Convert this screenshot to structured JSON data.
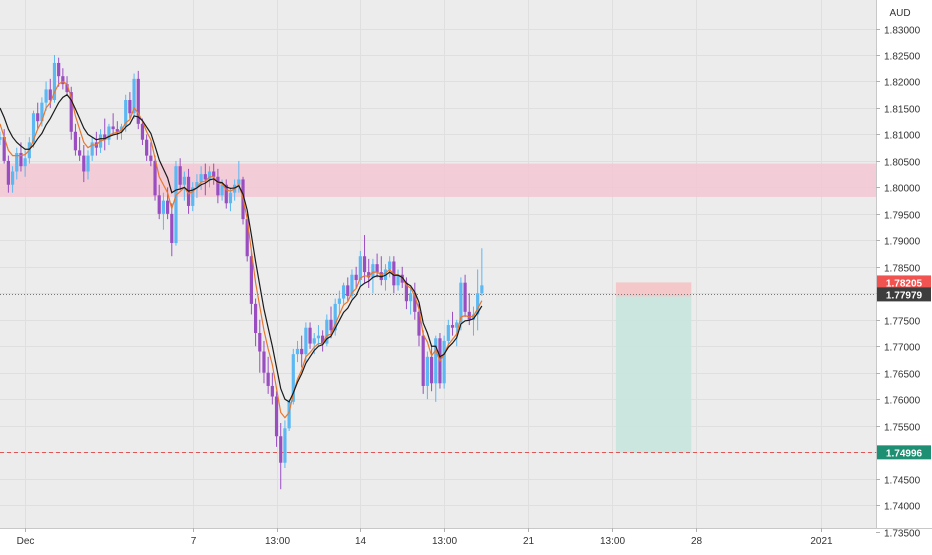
{
  "chart_data": {
    "type": "candlestick",
    "currency_label": "AUD",
    "y_ticks": [
      "1.83000",
      "1.82500",
      "1.82000",
      "1.81500",
      "1.81000",
      "1.80500",
      "1.80000",
      "1.79500",
      "1.79000",
      "1.78500",
      "1.78000",
      "1.77500",
      "1.77000",
      "1.76500",
      "1.76000",
      "1.75500",
      "1.75000",
      "1.74500",
      "1.74000",
      "1.73500"
    ],
    "ylim": [
      1.7335,
      1.8335
    ],
    "x_ticks": [
      {
        "label": "Dec",
        "bar": 6
      },
      {
        "label": "7",
        "bar": 46
      },
      {
        "label": "13:00",
        "bar": 66
      },
      {
        "label": "14",
        "bar": 86
      },
      {
        "label": "13:00",
        "bar": 106
      },
      {
        "label": "21",
        "bar": 126
      },
      {
        "label": "13:00",
        "bar": 146
      },
      {
        "label": "28",
        "bar": 166
      },
      {
        "label": "2021",
        "bar": 196
      }
    ],
    "price_labels": {
      "stop": "1.78205",
      "current": "1.77979",
      "target": "1.74996"
    },
    "levels": {
      "current": 1.77979,
      "stop": 1.78205,
      "target": 1.74996,
      "resistance_zone": [
        1.7982,
        1.8045
      ]
    },
    "position": {
      "start_bar": 147,
      "end_bar": 165,
      "entry": 1.7794,
      "stop": 1.78205,
      "target": 1.74996
    },
    "series": [
      {
        "kind": "ohlc",
        "values": [
          [
            1.809,
            1.8105,
            1.808,
            1.8095
          ],
          [
            1.8095,
            1.811,
            1.8045,
            1.805
          ],
          [
            1.805,
            1.806,
            1.799,
            1.8005
          ],
          [
            1.8005,
            1.804,
            1.799,
            1.803
          ],
          [
            1.803,
            1.8075,
            1.8015,
            1.8065
          ],
          [
            1.8065,
            1.8085,
            1.803,
            1.804
          ],
          [
            1.804,
            1.807,
            1.802,
            1.8055
          ],
          [
            1.8055,
            1.8095,
            1.8045,
            1.8085
          ],
          [
            1.8085,
            1.8145,
            1.8075,
            1.814
          ],
          [
            1.814,
            1.816,
            1.811,
            1.8125
          ],
          [
            1.8125,
            1.817,
            1.8115,
            1.816
          ],
          [
            1.816,
            1.82,
            1.8145,
            1.8185
          ],
          [
            1.8185,
            1.8205,
            1.815,
            1.8165
          ],
          [
            1.8165,
            1.825,
            1.816,
            1.8235
          ],
          [
            1.8235,
            1.8245,
            1.819,
            1.821
          ],
          [
            1.821,
            1.8225,
            1.8185,
            1.8195
          ],
          [
            1.8195,
            1.821,
            1.8175,
            1.818
          ],
          [
            1.818,
            1.819,
            1.809,
            1.8105
          ],
          [
            1.8105,
            1.812,
            1.806,
            1.807
          ],
          [
            1.807,
            1.8095,
            1.805,
            1.806
          ],
          [
            1.806,
            1.808,
            1.801,
            1.803
          ],
          [
            1.803,
            1.807,
            1.8015,
            1.806
          ],
          [
            1.806,
            1.8095,
            1.805,
            1.8085
          ],
          [
            1.8085,
            1.8105,
            1.806,
            1.8075
          ],
          [
            1.8075,
            1.811,
            1.8065,
            1.81
          ],
          [
            1.81,
            1.813,
            1.807,
            1.809
          ],
          [
            1.809,
            1.812,
            1.808,
            1.8115
          ],
          [
            1.8115,
            1.814,
            1.81,
            1.811
          ],
          [
            1.811,
            1.8125,
            1.809,
            1.8105
          ],
          [
            1.8105,
            1.812,
            1.809,
            1.8115
          ],
          [
            1.8115,
            1.8175,
            1.8105,
            1.8165
          ],
          [
            1.8165,
            1.818,
            1.813,
            1.814
          ],
          [
            1.814,
            1.8215,
            1.813,
            1.8205
          ],
          [
            1.8205,
            1.822,
            1.811,
            1.812
          ],
          [
            1.812,
            1.813,
            1.808,
            1.809
          ],
          [
            1.809,
            1.81,
            1.805,
            1.806
          ],
          [
            1.806,
            1.8085,
            1.804,
            1.805
          ],
          [
            1.805,
            1.806,
            1.7975,
            1.7985
          ],
          [
            1.7985,
            1.8005,
            1.794,
            1.795
          ],
          [
            1.795,
            1.799,
            1.792,
            1.7975
          ],
          [
            1.7975,
            1.8,
            1.794,
            1.795
          ],
          [
            1.795,
            1.797,
            1.787,
            1.7895
          ],
          [
            1.7895,
            1.805,
            1.789,
            1.804
          ],
          [
            1.804,
            1.8055,
            1.7995,
            1.8005
          ],
          [
            1.8005,
            1.803,
            1.7975,
            1.802
          ],
          [
            1.802,
            1.8035,
            1.795,
            1.7965
          ],
          [
            1.7965,
            1.801,
            1.7955,
            1.8
          ],
          [
            1.8,
            1.8025,
            1.798,
            1.801
          ],
          [
            1.801,
            1.804,
            1.7995,
            1.8025
          ],
          [
            1.8025,
            1.8045,
            1.7985,
            1.8015
          ],
          [
            1.8015,
            1.804,
            1.8,
            1.803
          ],
          [
            1.803,
            1.8045,
            1.8005,
            1.802
          ],
          [
            1.802,
            1.8035,
            1.797,
            1.7985
          ],
          [
            1.7985,
            1.8015,
            1.7975,
            1.8005
          ],
          [
            1.8005,
            1.8015,
            1.796,
            1.797
          ],
          [
            1.797,
            1.8,
            1.7955,
            1.799
          ],
          [
            1.799,
            1.8015,
            1.7975,
            1.8005
          ],
          [
            1.8005,
            1.805,
            1.799,
            1.8015
          ],
          [
            1.8015,
            1.802,
            1.793,
            1.794
          ],
          [
            1.794,
            1.795,
            1.786,
            1.787
          ],
          [
            1.787,
            1.788,
            1.776,
            1.778
          ],
          [
            1.778,
            1.779,
            1.77,
            1.7725
          ],
          [
            1.7725,
            1.775,
            1.765,
            1.769
          ],
          [
            1.769,
            1.771,
            1.763,
            1.765
          ],
          [
            1.765,
            1.768,
            1.761,
            1.7625
          ],
          [
            1.7625,
            1.765,
            1.759,
            1.7605
          ],
          [
            1.7605,
            1.7615,
            1.751,
            1.753
          ],
          [
            1.753,
            1.7555,
            1.743,
            1.748
          ],
          [
            1.748,
            1.756,
            1.747,
            1.7545
          ],
          [
            1.7545,
            1.76,
            1.754,
            1.7595
          ],
          [
            1.7595,
            1.7695,
            1.759,
            1.7685
          ],
          [
            1.7685,
            1.771,
            1.767,
            1.7695
          ],
          [
            1.7695,
            1.772,
            1.766,
            1.7685
          ],
          [
            1.7685,
            1.7745,
            1.767,
            1.7735
          ],
          [
            1.7735,
            1.7745,
            1.7695,
            1.7705
          ],
          [
            1.7705,
            1.7725,
            1.7685,
            1.7715
          ],
          [
            1.7715,
            1.774,
            1.77,
            1.772
          ],
          [
            1.772,
            1.773,
            1.769,
            1.7705
          ],
          [
            1.7705,
            1.776,
            1.77,
            1.775
          ],
          [
            1.775,
            1.7775,
            1.7715,
            1.773
          ],
          [
            1.773,
            1.779,
            1.772,
            1.778
          ],
          [
            1.778,
            1.7805,
            1.776,
            1.779
          ],
          [
            1.779,
            1.782,
            1.778,
            1.7815
          ],
          [
            1.7815,
            1.783,
            1.7785,
            1.7795
          ],
          [
            1.7795,
            1.7845,
            1.779,
            1.7835
          ],
          [
            1.7835,
            1.785,
            1.781,
            1.7825
          ],
          [
            1.7825,
            1.788,
            1.7815,
            1.787
          ],
          [
            1.787,
            1.791,
            1.782,
            1.784
          ],
          [
            1.784,
            1.7865,
            1.781,
            1.783
          ],
          [
            1.783,
            1.7865,
            1.78,
            1.7855
          ],
          [
            1.7855,
            1.7875,
            1.783,
            1.784
          ],
          [
            1.784,
            1.787,
            1.7815,
            1.7825
          ],
          [
            1.7825,
            1.7855,
            1.7805,
            1.7845
          ],
          [
            1.7845,
            1.787,
            1.783,
            1.786
          ],
          [
            1.786,
            1.787,
            1.78,
            1.7815
          ],
          [
            1.7815,
            1.7845,
            1.7805,
            1.7835
          ],
          [
            1.7835,
            1.785,
            1.781,
            1.782
          ],
          [
            1.782,
            1.783,
            1.777,
            1.7785
          ],
          [
            1.7785,
            1.781,
            1.776,
            1.78
          ],
          [
            1.78,
            1.782,
            1.775,
            1.7765
          ],
          [
            1.7765,
            1.778,
            1.77,
            1.772
          ],
          [
            1.772,
            1.773,
            1.761,
            1.7625
          ],
          [
            1.7625,
            1.769,
            1.76,
            1.768
          ],
          [
            1.768,
            1.77,
            1.7615,
            1.763
          ],
          [
            1.763,
            1.772,
            1.7595,
            1.7715
          ],
          [
            1.7715,
            1.7725,
            1.762,
            1.763
          ],
          [
            1.763,
            1.772,
            1.762,
            1.771
          ],
          [
            1.771,
            1.775,
            1.77,
            1.774
          ],
          [
            1.774,
            1.7765,
            1.772,
            1.7735
          ],
          [
            1.7735,
            1.775,
            1.77,
            1.7745
          ],
          [
            1.7745,
            1.783,
            1.773,
            1.782
          ],
          [
            1.782,
            1.7835,
            1.7755,
            1.7765
          ],
          [
            1.7765,
            1.78,
            1.774,
            1.775
          ],
          [
            1.775,
            1.7775,
            1.772,
            1.776
          ],
          [
            1.776,
            1.7845,
            1.773,
            1.78
          ],
          [
            1.78,
            1.7885,
            1.7795,
            1.7815
          ]
        ]
      },
      {
        "kind": "ma",
        "color": "#e8772e",
        "values": [
          1.812,
          1.8095,
          1.807,
          1.806,
          1.806,
          1.806,
          1.8062,
          1.807,
          1.809,
          1.811,
          1.8125,
          1.815,
          1.816,
          1.818,
          1.8195,
          1.82,
          1.8195,
          1.817,
          1.8135,
          1.811,
          1.8085,
          1.8075,
          1.808,
          1.808,
          1.8088,
          1.809,
          1.8098,
          1.8102,
          1.8104,
          1.8108,
          1.8122,
          1.8128,
          1.815,
          1.814,
          1.8125,
          1.8105,
          1.809,
          1.8055,
          1.802,
          1.8005,
          1.799,
          1.796,
          1.7985,
          1.7992,
          1.8,
          1.7988,
          1.7992,
          1.8,
          1.801,
          1.8012,
          1.802,
          1.802,
          1.8008,
          1.8007,
          1.7995,
          1.7993,
          1.7997,
          1.8005,
          1.798,
          1.794,
          1.788,
          1.782,
          1.7775,
          1.773,
          1.7695,
          1.7665,
          1.762,
          1.7575,
          1.7565,
          1.7575,
          1.761,
          1.7638,
          1.7655,
          1.768,
          1.7688,
          1.7698,
          1.7705,
          1.7705,
          1.772,
          1.7723,
          1.7742,
          1.776,
          1.7778,
          1.7784,
          1.7801,
          1.7809,
          1.7829,
          1.7833,
          1.7832,
          1.784,
          1.784,
          1.7835,
          1.7838,
          1.7845,
          1.7835,
          1.7835,
          1.783,
          1.7815,
          1.781,
          1.7795,
          1.777,
          1.7722,
          1.7708,
          1.7682,
          1.7693,
          1.7672,
          1.7685,
          1.7703,
          1.7713,
          1.7723,
          1.7755,
          1.7758,
          1.7755,
          1.7757,
          1.7771,
          1.7786
        ]
      },
      {
        "kind": "ma",
        "color": "#1a1a1a",
        "values": [
          1.815,
          1.8132,
          1.811,
          1.8095,
          1.8085,
          1.8078,
          1.8072,
          1.8072,
          1.808,
          1.8092,
          1.8102,
          1.8118,
          1.813,
          1.8145,
          1.816,
          1.817,
          1.8175,
          1.8165,
          1.8148,
          1.813,
          1.8112,
          1.81,
          1.8095,
          1.809,
          1.8092,
          1.8092,
          1.8096,
          1.8099,
          1.8101,
          1.8104,
          1.8114,
          1.812,
          1.8135,
          1.8133,
          1.8126,
          1.8114,
          1.8102,
          1.8078,
          1.8052,
          1.8035,
          1.8018,
          1.799,
          1.7995,
          1.7997,
          1.8,
          1.7993,
          1.7995,
          1.7999,
          1.8005,
          1.8008,
          1.8014,
          1.8016,
          1.801,
          1.8009,
          1.8001,
          1.7998,
          1.7999,
          1.8003,
          1.7987,
          1.7957,
          1.791,
          1.786,
          1.7815,
          1.777,
          1.7735,
          1.77,
          1.766,
          1.762,
          1.76,
          1.7595,
          1.7612,
          1.7632,
          1.7648,
          1.7668,
          1.768,
          1.7692,
          1.77,
          1.7703,
          1.7714,
          1.7719,
          1.7734,
          1.7749,
          1.7764,
          1.7772,
          1.7787,
          1.7796,
          1.7813,
          1.7819,
          1.7823,
          1.783,
          1.7833,
          1.7831,
          1.7834,
          1.784,
          1.7834,
          1.7834,
          1.783,
          1.7819,
          1.7814,
          1.7802,
          1.7783,
          1.7744,
          1.7725,
          1.77,
          1.77,
          1.768,
          1.7685,
          1.7698,
          1.7706,
          1.7716,
          1.7742,
          1.7748,
          1.7749,
          1.7752,
          1.7763,
          1.7776
        ]
      }
    ],
    "colors": {
      "up": "#5bb8f2",
      "down": "#9a4dc1",
      "zone": "#f3c7d2",
      "stop_box": "#f5c4c4",
      "target_box": "#c6e6de",
      "stop_tag": "#f05350",
      "current_tag": "#3d3d3d",
      "target_tag": "#1e8f72",
      "background": "#ececec"
    }
  }
}
